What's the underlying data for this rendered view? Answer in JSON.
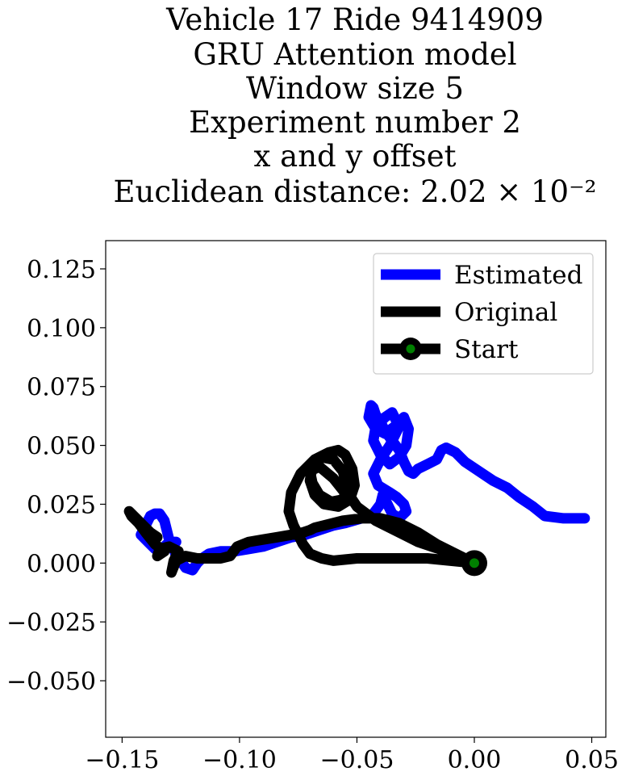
{
  "chart_data": {
    "type": "line",
    "title_lines": [
      "Vehicle 17 Ride 9414909",
      "GRU Attention model",
      "Window size 5",
      "Experiment number 2",
      "x and y offset",
      "Euclidean distance: 2.02 × 10⁻²"
    ],
    "xlabel": "",
    "ylabel": "",
    "xlim": [
      -0.157,
      0.056
    ],
    "ylim": [
      -0.074,
      0.137
    ],
    "xticks": [
      -0.15,
      -0.1,
      -0.05,
      0.0,
      0.05
    ],
    "xtick_labels": [
      "−0.15",
      "−0.10",
      "−0.05",
      "0.00",
      "0.05"
    ],
    "yticks": [
      -0.05,
      -0.025,
      0.0,
      0.025,
      0.05,
      0.075,
      0.1,
      0.125
    ],
    "ytick_labels": [
      "−0.050",
      "−0.025",
      "0.000",
      "0.025",
      "0.050",
      "0.075",
      "0.100",
      "0.125"
    ],
    "grid": false,
    "legend_position": "top-right",
    "legend": [
      "Estimated",
      "Original",
      "Start"
    ],
    "series": [
      {
        "name": "Estimated",
        "color": "#0000ff",
        "x": [
          0.047,
          0.038,
          0.03,
          0.025,
          0.019,
          0.014,
          0.008,
          0.002,
          -0.004,
          -0.008,
          -0.012,
          -0.014,
          -0.016,
          -0.02,
          -0.024,
          -0.026,
          -0.028,
          -0.03,
          -0.032,
          -0.035,
          -0.038,
          -0.04,
          -0.042,
          -0.043,
          -0.044,
          -0.045,
          -0.042,
          -0.038,
          -0.034,
          -0.03,
          -0.028,
          -0.029,
          -0.032,
          -0.036,
          -0.04,
          -0.043,
          -0.042,
          -0.038,
          -0.035,
          -0.032,
          -0.036,
          -0.04,
          -0.043,
          -0.041,
          -0.036,
          -0.033,
          -0.03,
          -0.029,
          -0.032,
          -0.035,
          -0.037,
          -0.039,
          -0.04,
          -0.043,
          -0.048,
          -0.055,
          -0.06,
          -0.066,
          -0.072,
          -0.078,
          -0.084,
          -0.09,
          -0.096,
          -0.102,
          -0.108,
          -0.113,
          -0.116,
          -0.118,
          -0.12,
          -0.123,
          -0.125,
          -0.127,
          -0.128,
          -0.13,
          -0.131,
          -0.132,
          -0.134,
          -0.136,
          -0.138,
          -0.139,
          -0.14,
          -0.141,
          -0.142,
          -0.14,
          -0.138,
          -0.136,
          -0.134,
          -0.132,
          -0.13,
          -0.127
        ],
        "y": [
          0.019,
          0.019,
          0.02,
          0.024,
          0.028,
          0.032,
          0.035,
          0.039,
          0.043,
          0.047,
          0.049,
          0.048,
          0.044,
          0.042,
          0.04,
          0.038,
          0.039,
          0.043,
          0.048,
          0.052,
          0.056,
          0.06,
          0.063,
          0.066,
          0.067,
          0.062,
          0.057,
          0.055,
          0.058,
          0.062,
          0.057,
          0.05,
          0.045,
          0.042,
          0.046,
          0.052,
          0.058,
          0.062,
          0.064,
          0.058,
          0.05,
          0.044,
          0.038,
          0.033,
          0.03,
          0.028,
          0.025,
          0.022,
          0.019,
          0.021,
          0.025,
          0.029,
          0.025,
          0.021,
          0.019,
          0.017,
          0.016,
          0.014,
          0.012,
          0.011,
          0.009,
          0.007,
          0.006,
          0.005,
          0.005,
          0.004,
          0.002,
          0.0,
          -0.003,
          -0.002,
          0.001,
          0.003,
          0.006,
          0.01,
          0.014,
          0.018,
          0.021,
          0.021,
          0.02,
          0.018,
          0.016,
          0.014,
          0.012,
          0.01,
          0.008,
          0.006,
          0.005,
          0.007,
          0.009,
          0.009
        ]
      },
      {
        "name": "Original",
        "color": "#000000",
        "x": [
          0.0,
          -0.01,
          -0.02,
          -0.03,
          -0.04,
          -0.05,
          -0.06,
          -0.065,
          -0.07,
          -0.073,
          -0.075,
          -0.077,
          -0.079,
          -0.078,
          -0.074,
          -0.068,
          -0.062,
          -0.058,
          -0.055,
          -0.052,
          -0.051,
          -0.053,
          -0.058,
          -0.064,
          -0.068,
          -0.07,
          -0.069,
          -0.065,
          -0.06,
          -0.056,
          -0.054,
          -0.056,
          -0.061,
          -0.066,
          -0.069,
          -0.07,
          -0.066,
          -0.06,
          -0.056,
          -0.052,
          -0.05,
          -0.046,
          -0.042,
          -0.036,
          -0.03,
          -0.024,
          -0.018,
          -0.012,
          -0.006,
          0.0,
          -0.008,
          -0.016,
          -0.024,
          -0.032,
          -0.04,
          -0.048,
          -0.056,
          -0.064,
          -0.068,
          -0.07,
          -0.073,
          -0.078,
          -0.084,
          -0.09,
          -0.096,
          -0.101,
          -0.104,
          -0.108,
          -0.113,
          -0.118,
          -0.123,
          -0.127,
          -0.129,
          -0.128,
          -0.126,
          -0.13,
          -0.134,
          -0.135,
          -0.132,
          -0.136,
          -0.14,
          -0.143,
          -0.146,
          -0.147,
          -0.144,
          -0.141,
          -0.138,
          -0.135
        ],
        "y": [
          0.0,
          0.001,
          0.002,
          0.002,
          0.002,
          0.002,
          0.001,
          0.002,
          0.004,
          0.008,
          0.012,
          0.016,
          0.022,
          0.03,
          0.038,
          0.044,
          0.047,
          0.048,
          0.046,
          0.04,
          0.033,
          0.027,
          0.024,
          0.025,
          0.029,
          0.035,
          0.041,
          0.045,
          0.044,
          0.039,
          0.032,
          0.027,
          0.026,
          0.029,
          0.034,
          0.039,
          0.041,
          0.036,
          0.031,
          0.027,
          0.024,
          0.021,
          0.018,
          0.015,
          0.012,
          0.009,
          0.007,
          0.005,
          0.003,
          0.0,
          0.004,
          0.008,
          0.013,
          0.017,
          0.019,
          0.019,
          0.018,
          0.016,
          0.015,
          0.014,
          0.013,
          0.012,
          0.011,
          0.01,
          0.009,
          0.007,
          0.003,
          0.002,
          0.002,
          0.002,
          0.003,
          0.001,
          -0.004,
          0.001,
          0.005,
          0.007,
          0.006,
          0.003,
          0.005,
          0.008,
          0.013,
          0.017,
          0.02,
          0.022,
          0.019,
          0.016,
          0.013,
          0.011
        ]
      }
    ],
    "start_point": {
      "name": "Start",
      "x": 0.0,
      "y": 0.0,
      "marker_face": "#008000",
      "marker_edge": "#000000"
    }
  }
}
